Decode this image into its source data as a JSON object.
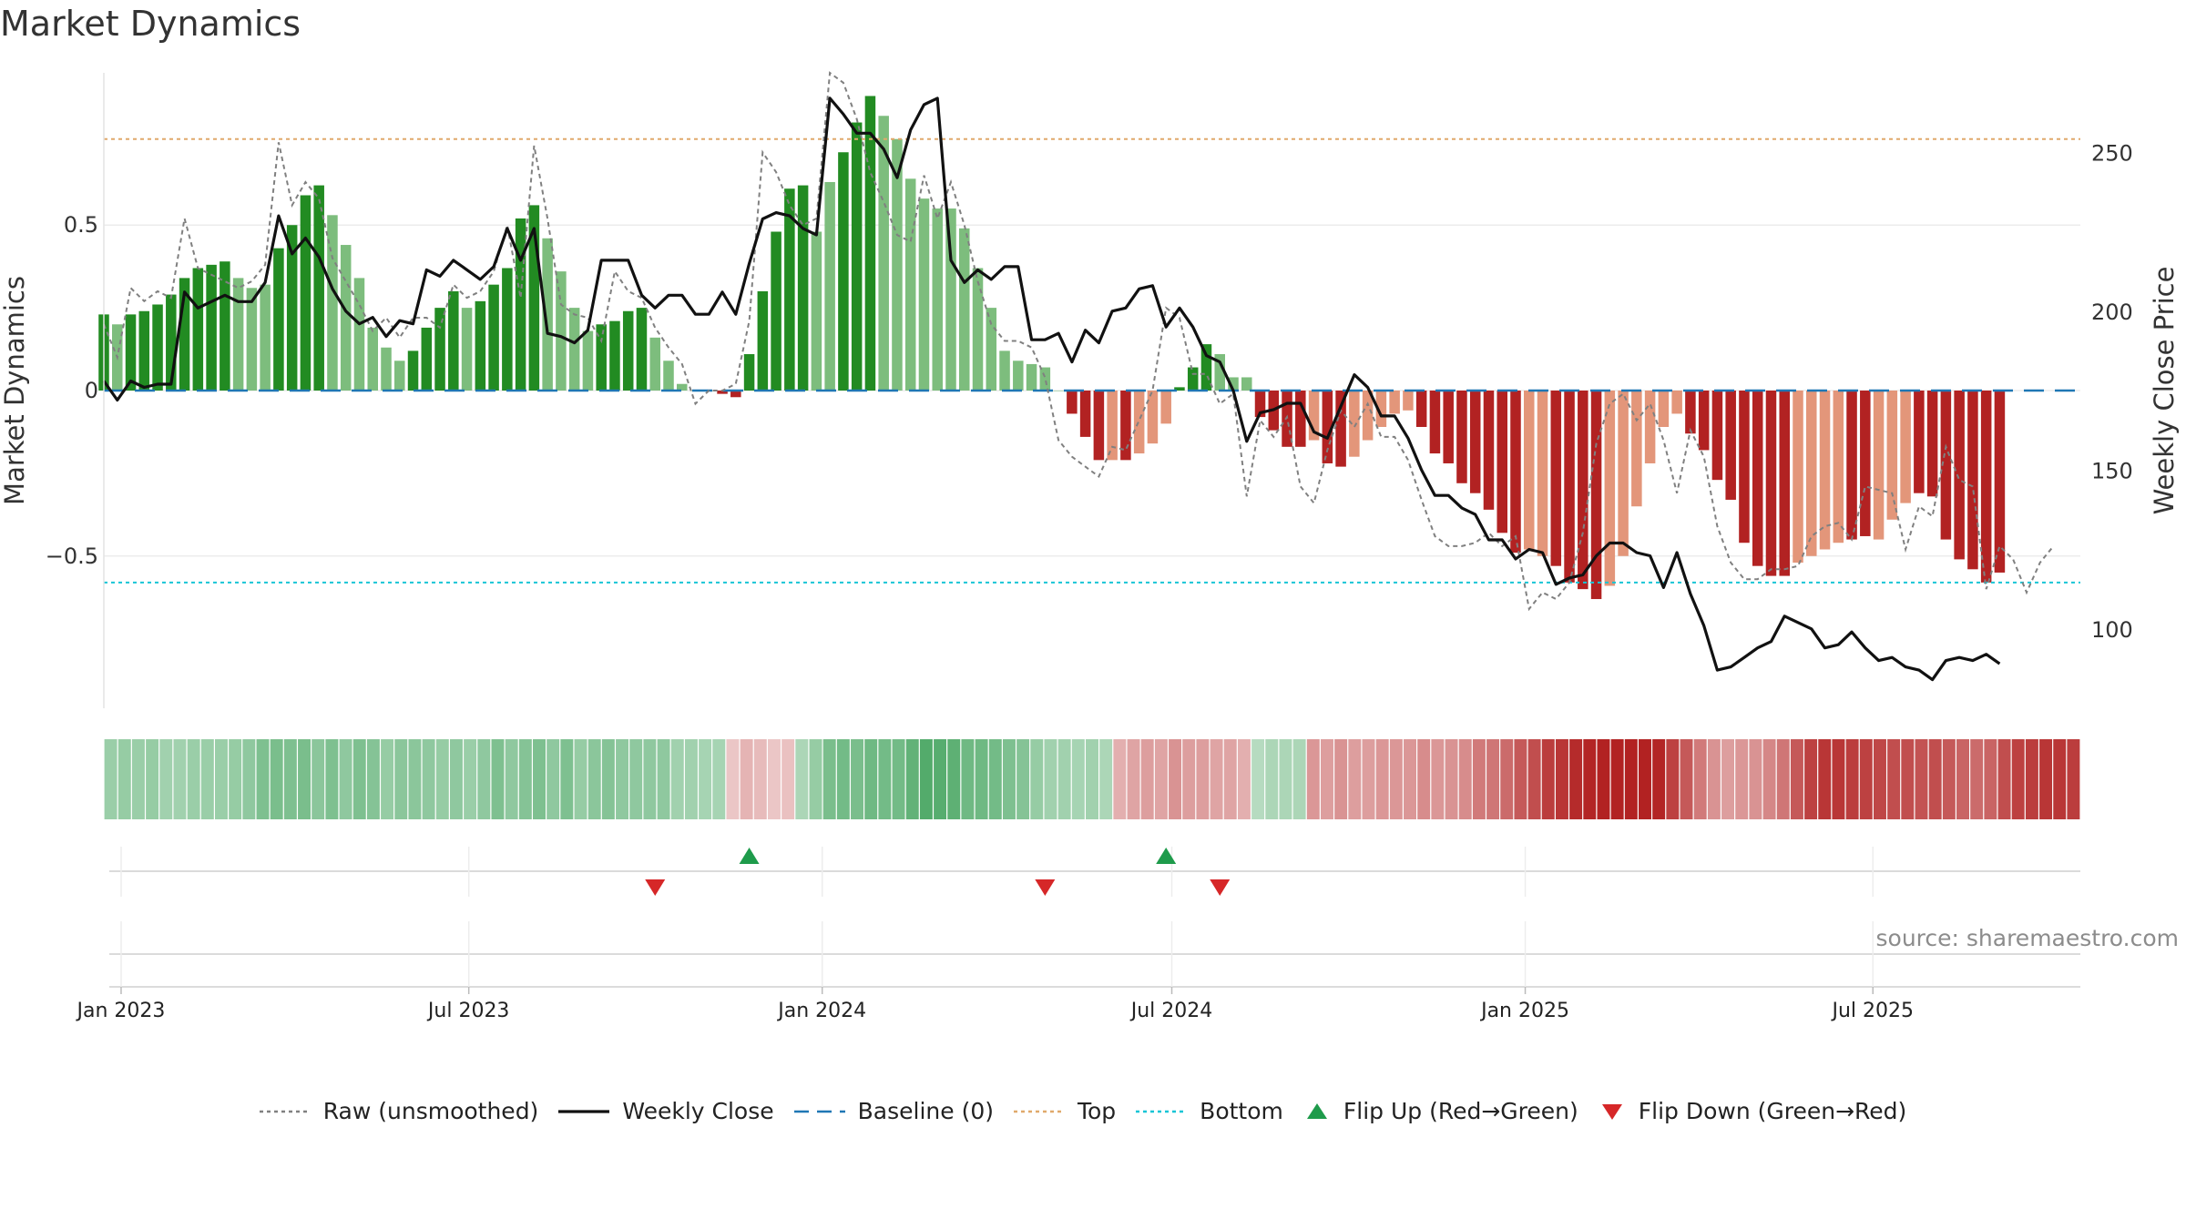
{
  "title": "Market Dynamics",
  "source_note": "source: sharemaestro.com",
  "colors": {
    "pos_strong": "#228b22",
    "pos_weak": "#7dbd7d",
    "neg_strong": "#b22222",
    "neg_weak": "#e3967a",
    "raw": "#808080",
    "close": "#111111",
    "baseline": "#1f77b4",
    "top": "#e0a96b",
    "bottom": "#17c5d6",
    "flip_up": "#1e9b4b",
    "flip_down": "#d62728"
  },
  "legend": [
    {
      "key": "raw",
      "label": "Raw (unsmoothed)",
      "icon": "dotted-line-icon"
    },
    {
      "key": "close",
      "label": "Weekly Close",
      "icon": "solid-line-icon"
    },
    {
      "key": "baseline",
      "label": "Baseline (0)",
      "icon": "dashed-line-icon"
    },
    {
      "key": "top",
      "label": "Top",
      "icon": "dotted-line-icon"
    },
    {
      "key": "bottom",
      "label": "Bottom",
      "icon": "dotted-line-icon"
    },
    {
      "key": "flip_up",
      "label": "Flip Up (Red→Green)",
      "icon": "triangle-up-icon"
    },
    {
      "key": "flip_down",
      "label": "Flip Down (Green→Red)",
      "icon": "triangle-down-icon"
    }
  ],
  "chart_data": {
    "type": "bar",
    "ylabel": "Market Dynamics",
    "y2label": "Weekly Close Price",
    "ylim": [
      -0.96,
      0.96
    ],
    "y2lim": [
      75,
      275
    ],
    "yticks": [
      {
        "v": 0.5,
        "label": "0.5"
      },
      {
        "v": 0,
        "label": "0"
      },
      {
        "v": -0.5,
        "label": "−0.5"
      }
    ],
    "y2ticks": [
      {
        "v": 250,
        "label": "250"
      },
      {
        "v": 200,
        "label": "200"
      },
      {
        "v": 150,
        "label": "150"
      },
      {
        "v": 100,
        "label": "100"
      }
    ],
    "x_start": "2022-12-23",
    "x_end": "2025-10-17",
    "xticks": [
      {
        "date": "2023-01-01",
        "label": "Jan 2023"
      },
      {
        "date": "2023-07-01",
        "label": "Jul 2023"
      },
      {
        "date": "2024-01-01",
        "label": "Jan 2024"
      },
      {
        "date": "2024-07-01",
        "label": "Jul 2024"
      },
      {
        "date": "2025-01-01",
        "label": "Jan 2025"
      },
      {
        "date": "2025-07-01",
        "label": "Jul 2025"
      }
    ],
    "top_level": 0.76,
    "bottom_level": -0.58,
    "baseline": 0,
    "weeks": [
      "2022-12-23",
      "2022-12-30",
      "2023-01-06",
      "2023-01-13",
      "2023-01-20",
      "2023-01-27",
      "2023-02-03",
      "2023-02-10",
      "2023-02-17",
      "2023-02-24",
      "2023-03-03",
      "2023-03-10",
      "2023-03-17",
      "2023-03-24",
      "2023-03-31",
      "2023-04-07",
      "2023-04-14",
      "2023-04-21",
      "2023-04-28",
      "2023-05-05",
      "2023-05-12",
      "2023-05-19",
      "2023-05-26",
      "2023-06-02",
      "2023-06-09",
      "2023-06-16",
      "2023-06-23",
      "2023-06-30",
      "2023-07-07",
      "2023-07-14",
      "2023-07-21",
      "2023-07-28",
      "2023-08-04",
      "2023-08-11",
      "2023-08-18",
      "2023-08-25",
      "2023-09-01",
      "2023-09-08",
      "2023-09-15",
      "2023-09-22",
      "2023-09-29",
      "2023-10-06",
      "2023-10-13",
      "2023-10-20",
      "2023-10-27",
      "2023-11-03",
      "2023-11-10",
      "2023-11-17",
      "2023-11-24",
      "2023-12-01",
      "2023-12-08",
      "2023-12-15",
      "2023-12-22",
      "2023-12-29",
      "2024-01-05",
      "2024-01-12",
      "2024-01-19",
      "2024-01-26",
      "2024-02-02",
      "2024-02-09",
      "2024-02-16",
      "2024-02-23",
      "2024-03-01",
      "2024-03-08",
      "2024-03-15",
      "2024-03-22",
      "2024-03-29",
      "2024-04-05",
      "2024-04-12",
      "2024-04-19",
      "2024-04-26",
      "2024-05-03",
      "2024-05-10",
      "2024-05-17",
      "2024-05-24",
      "2024-05-31",
      "2024-06-07",
      "2024-06-14",
      "2024-06-21",
      "2024-06-28",
      "2024-07-05",
      "2024-07-12",
      "2024-07-19",
      "2024-07-26",
      "2024-08-02",
      "2024-08-09",
      "2024-08-16",
      "2024-08-23",
      "2024-08-30",
      "2024-09-06",
      "2024-09-13",
      "2024-09-20",
      "2024-09-27",
      "2024-10-04",
      "2024-10-11",
      "2024-10-18",
      "2024-10-25",
      "2024-11-01",
      "2024-11-08",
      "2024-11-15",
      "2024-11-22",
      "2024-11-29",
      "2024-12-06",
      "2024-12-13",
      "2024-12-20",
      "2024-12-27",
      "2025-01-03",
      "2025-01-10",
      "2025-01-17",
      "2025-01-24",
      "2025-01-31",
      "2025-02-07",
      "2025-02-14",
      "2025-02-21",
      "2025-02-28",
      "2025-03-07",
      "2025-03-14",
      "2025-03-21",
      "2025-03-28",
      "2025-04-04",
      "2025-04-11",
      "2025-04-18",
      "2025-04-25",
      "2025-05-02",
      "2025-05-09",
      "2025-05-16",
      "2025-05-23",
      "2025-05-30",
      "2025-06-06",
      "2025-06-13",
      "2025-06-20",
      "2025-06-27",
      "2025-07-04",
      "2025-07-11",
      "2025-07-18",
      "2025-07-25",
      "2025-08-01",
      "2025-08-08",
      "2025-08-15",
      "2025-08-22",
      "2025-08-29",
      "2025-09-05",
      "2025-09-12",
      "2025-09-19",
      "2025-09-26",
      "2025-10-03",
      "2025-10-10",
      "2025-10-17"
    ],
    "dynamics": [
      0.23,
      0.2,
      0.23,
      0.24,
      0.26,
      0.29,
      0.34,
      0.37,
      0.38,
      0.39,
      0.34,
      0.31,
      0.32,
      0.43,
      0.5,
      0.59,
      0.62,
      0.53,
      0.44,
      0.34,
      0.19,
      0.13,
      0.09,
      0.12,
      0.19,
      0.25,
      0.3,
      0.25,
      0.27,
      0.32,
      0.37,
      0.52,
      0.56,
      0.46,
      0.36,
      0.25,
      0.18,
      0.2,
      0.21,
      0.24,
      0.25,
      0.16,
      0.09,
      0.02,
      0.0,
      0.0,
      -0.01,
      -0.02,
      0.11,
      0.3,
      0.48,
      0.61,
      0.62,
      0.48,
      0.63,
      0.72,
      0.81,
      0.89,
      0.83,
      0.76,
      0.64,
      0.58,
      0.55,
      0.55,
      0.49,
      0.37,
      0.25,
      0.12,
      0.09,
      0.08,
      0.07,
      0.0,
      -0.07,
      -0.14,
      -0.21,
      -0.21,
      -0.21,
      -0.19,
      -0.16,
      -0.1,
      0.01,
      0.07,
      0.14,
      0.11,
      0.04,
      0.04,
      -0.08,
      -0.12,
      -0.17,
      -0.17,
      -0.15,
      -0.22,
      -0.23,
      -0.2,
      -0.15,
      -0.11,
      -0.07,
      -0.06,
      -0.11,
      -0.19,
      -0.22,
      -0.28,
      -0.31,
      -0.36,
      -0.43,
      -0.49,
      -0.48,
      -0.5,
      -0.53,
      -0.58,
      -0.6,
      -0.63,
      -0.59,
      -0.5,
      -0.35,
      -0.22,
      -0.11,
      -0.07,
      -0.13,
      -0.18,
      -0.27,
      -0.33,
      -0.46,
      -0.53,
      -0.56,
      -0.56,
      -0.52,
      -0.5,
      -0.48,
      -0.46,
      -0.45,
      -0.44,
      -0.45,
      -0.39,
      -0.34,
      -0.31,
      -0.32,
      -0.45,
      -0.51,
      -0.54,
      -0.58,
      -0.55
    ],
    "strength": [
      1,
      0,
      1,
      1,
      1,
      1,
      1,
      1,
      1,
      1,
      0,
      0,
      0,
      1,
      1,
      1,
      1,
      0,
      0,
      0,
      0,
      0,
      0,
      1,
      1,
      1,
      1,
      0,
      1,
      1,
      1,
      1,
      1,
      0,
      0,
      0,
      0,
      1,
      1,
      1,
      1,
      0,
      0,
      0,
      0,
      0,
      1,
      1,
      1,
      1,
      1,
      1,
      1,
      0,
      0,
      1,
      1,
      1,
      0,
      0,
      0,
      0,
      0,
      0,
      0,
      0,
      0,
      0,
      0,
      0,
      0,
      0,
      1,
      1,
      1,
      0,
      1,
      0,
      0,
      0,
      1,
      1,
      1,
      0,
      0,
      0,
      1,
      1,
      1,
      1,
      0,
      1,
      1,
      0,
      0,
      0,
      0,
      0,
      1,
      1,
      1,
      1,
      1,
      1,
      1,
      1,
      0,
      0,
      1,
      1,
      1,
      1,
      0,
      0,
      0,
      0,
      0,
      0,
      1,
      1,
      1,
      1,
      1,
      1,
      1,
      1,
      0,
      0,
      0,
      0,
      1,
      1,
      0,
      0,
      0,
      1,
      1,
      1,
      1,
      1,
      1,
      1,
      1,
      0
    ],
    "raw": [
      0.2,
      0.1,
      0.31,
      0.27,
      0.3,
      0.28,
      0.52,
      0.37,
      0.35,
      0.33,
      0.31,
      0.33,
      0.38,
      0.75,
      0.56,
      0.63,
      0.58,
      0.4,
      0.33,
      0.26,
      0.18,
      0.22,
      0.16,
      0.22,
      0.22,
      0.19,
      0.32,
      0.28,
      0.3,
      0.36,
      0.5,
      0.28,
      0.74,
      0.52,
      0.26,
      0.23,
      0.22,
      0.15,
      0.36,
      0.3,
      0.28,
      0.19,
      0.13,
      0.08,
      -0.04,
      0.0,
      0.0,
      0.02,
      0.21,
      0.72,
      0.66,
      0.56,
      0.5,
      0.52,
      0.96,
      0.93,
      0.82,
      0.66,
      0.57,
      0.47,
      0.45,
      0.65,
      0.52,
      0.63,
      0.5,
      0.33,
      0.2,
      0.15,
      0.15,
      0.13,
      0.04,
      -0.15,
      -0.2,
      -0.23,
      -0.26,
      -0.17,
      -0.18,
      -0.09,
      0.0,
      0.25,
      0.22,
      0.05,
      0.05,
      -0.04,
      -0.01,
      -0.32,
      -0.09,
      -0.14,
      -0.08,
      -0.29,
      -0.34,
      -0.18,
      -0.06,
      -0.11,
      -0.04,
      -0.14,
      -0.14,
      -0.21,
      -0.33,
      -0.44,
      -0.47,
      -0.47,
      -0.46,
      -0.43,
      -0.47,
      -0.44,
      -0.66,
      -0.61,
      -0.63,
      -0.58,
      -0.43,
      -0.16,
      -0.04,
      -0.01,
      -0.09,
      -0.04,
      -0.15,
      -0.31,
      -0.12,
      -0.2,
      -0.41,
      -0.52,
      -0.57,
      -0.57,
      -0.54,
      -0.54,
      -0.53,
      -0.44,
      -0.41,
      -0.4,
      -0.45,
      -0.29,
      -0.3,
      -0.31,
      -0.48,
      -0.35,
      -0.38,
      -0.17,
      -0.27,
      -0.29,
      -0.6,
      -0.47,
      -0.51,
      -0.61,
      -0.52,
      -0.47
    ],
    "weekly_close": [
      178,
      172,
      178,
      176,
      177,
      177,
      206,
      201,
      203,
      205,
      203,
      203,
      209,
      230,
      218,
      223,
      217,
      207,
      200,
      196,
      198,
      192,
      197,
      196,
      213,
      211,
      216,
      213,
      210,
      214,
      226,
      216,
      226,
      193,
      192,
      190,
      194,
      216,
      216,
      216,
      205,
      201,
      205,
      205,
      199,
      199,
      206,
      199,
      215,
      229,
      231,
      230,
      226,
      224,
      267,
      262,
      256,
      256,
      251,
      242,
      257,
      265,
      267,
      216,
      209,
      213,
      210,
      214,
      214,
      191,
      191,
      193,
      184,
      194,
      190,
      200,
      201,
      207,
      208,
      195,
      201,
      195,
      186,
      184,
      175,
      159,
      168,
      169,
      171,
      171,
      162,
      160,
      170,
      180,
      176,
      167,
      167,
      160,
      150,
      142,
      142,
      138,
      136,
      128,
      128,
      122,
      125,
      124,
      114,
      116,
      117,
      123,
      127,
      127,
      124,
      123,
      113,
      124,
      111,
      101,
      87,
      88,
      91,
      94,
      96,
      104,
      102,
      100,
      94,
      95,
      99,
      94,
      90,
      91,
      88,
      87,
      84,
      90,
      91,
      90,
      92,
      89
    ],
    "flips_up": [
      "2023-11-24",
      "2024-06-28"
    ],
    "flips_down": [
      "2023-10-06",
      "2024-04-26",
      "2024-07-26"
    ],
    "regime_band": [
      -0.11,
      -0.12,
      -0.11,
      -0.12,
      -0.1,
      -0.1,
      -0.11,
      -0.11,
      -0.11,
      -0.12,
      -0.13,
      -0.16,
      -0.17,
      -0.16,
      -0.17,
      -0.14,
      -0.16,
      -0.13,
      -0.16,
      -0.15,
      -0.12,
      -0.14,
      -0.14,
      -0.13,
      -0.12,
      -0.13,
      -0.11,
      -0.13,
      -0.16,
      -0.13,
      -0.15,
      -0.16,
      -0.13,
      -0.16,
      -0.12,
      -0.14,
      -0.15,
      -0.13,
      -0.13,
      -0.13,
      -0.13,
      -0.1,
      -0.1,
      -0.09,
      -0.09,
      0.03,
      0.06,
      0.05,
      0.03,
      0.04,
      -0.08,
      -0.12,
      -0.17,
      -0.18,
      -0.17,
      -0.19,
      -0.18,
      -0.18,
      -0.21,
      -0.24,
      -0.23,
      -0.22,
      -0.19,
      -0.19,
      -0.18,
      -0.16,
      -0.15,
      -0.12,
      -0.1,
      -0.1,
      -0.09,
      -0.1,
      -0.08,
      0.07,
      0.09,
      0.1,
      0.09,
      0.12,
      0.1,
      0.1,
      0.09,
      0.09,
      0.07,
      -0.06,
      -0.08,
      -0.08,
      -0.08,
      0.11,
      0.1,
      0.12,
      0.1,
      0.1,
      0.11,
      0.11,
      0.11,
      0.13,
      0.11,
      0.12,
      0.13,
      0.16,
      0.17,
      0.19,
      0.22,
      0.24,
      0.27,
      0.28,
      0.3,
      0.31,
      0.32,
      0.33,
      0.34,
      0.33,
      0.31,
      0.26,
      0.22,
      0.16,
      0.12,
      0.1,
      0.11,
      0.12,
      0.14,
      0.17,
      0.22,
      0.26,
      0.28,
      0.28,
      0.27,
      0.26,
      0.25,
      0.24,
      0.24,
      0.23,
      0.24,
      0.22,
      0.2,
      0.19,
      0.2,
      0.24,
      0.26,
      0.27,
      0.28,
      0.28,
      0.27
    ]
  }
}
